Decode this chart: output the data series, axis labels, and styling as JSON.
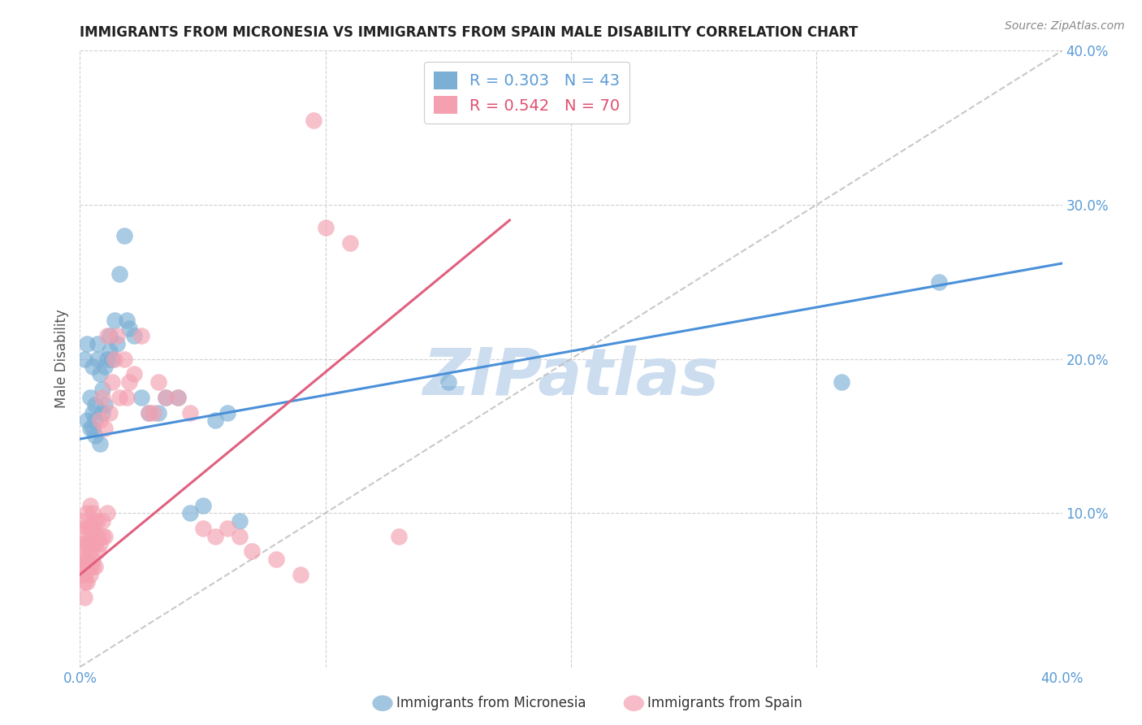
{
  "title": "IMMIGRANTS FROM MICRONESIA VS IMMIGRANTS FROM SPAIN MALE DISABILITY CORRELATION CHART",
  "source": "Source: ZipAtlas.com",
  "ylabel": "Male Disability",
  "xlim": [
    0.0,
    0.4
  ],
  "ylim": [
    0.0,
    0.4
  ],
  "xticks": [
    0.0,
    0.1,
    0.2,
    0.3,
    0.4
  ],
  "yticks": [
    0.1,
    0.2,
    0.3,
    0.4
  ],
  "xticklabels": [
    "0.0%",
    "",
    "",
    "",
    "40.0%"
  ],
  "yticklabels_right": [
    "10.0%",
    "20.0%",
    "30.0%",
    "40.0%"
  ],
  "background_color": "#ffffff",
  "grid_color": "#d0d0d0",
  "color_micronesia": "#7bafd4",
  "color_spain": "#f4a0b0",
  "trendline_micronesia": "#4a90d9",
  "trendline_spain": "#e06080",
  "watermark_text": "ZIPatlas",
  "watermark_color": "#ccddf0",
  "legend_R_micronesia": "R = 0.303",
  "legend_N_micronesia": "N = 43",
  "legend_R_spain": "R = 0.542",
  "legend_N_spain": "N = 70",
  "mic_line_x": [
    0.0,
    0.4
  ],
  "mic_line_y": [
    0.148,
    0.262
  ],
  "spa_line_x": [
    0.0,
    0.175
  ],
  "spa_line_y": [
    0.06,
    0.29
  ],
  "diag_line_x": [
    0.0,
    0.4
  ],
  "diag_line_y": [
    0.0,
    0.4
  ],
  "micronesia_x": [
    0.002,
    0.003,
    0.003,
    0.004,
    0.004,
    0.005,
    0.005,
    0.005,
    0.006,
    0.006,
    0.006,
    0.007,
    0.007,
    0.008,
    0.008,
    0.009,
    0.009,
    0.01,
    0.01,
    0.011,
    0.012,
    0.012,
    0.013,
    0.014,
    0.015,
    0.016,
    0.018,
    0.019,
    0.02,
    0.022,
    0.025,
    0.028,
    0.032,
    0.035,
    0.04,
    0.045,
    0.05,
    0.055,
    0.06,
    0.065,
    0.15,
    0.31,
    0.35
  ],
  "micronesia_y": [
    0.2,
    0.16,
    0.21,
    0.155,
    0.175,
    0.155,
    0.165,
    0.195,
    0.15,
    0.16,
    0.17,
    0.2,
    0.21,
    0.145,
    0.19,
    0.18,
    0.165,
    0.17,
    0.195,
    0.2,
    0.215,
    0.205,
    0.2,
    0.225,
    0.21,
    0.255,
    0.28,
    0.225,
    0.22,
    0.215,
    0.175,
    0.165,
    0.165,
    0.175,
    0.175,
    0.1,
    0.105,
    0.16,
    0.165,
    0.095,
    0.185,
    0.185,
    0.25
  ],
  "spain_x": [
    0.001,
    0.001,
    0.001,
    0.001,
    0.001,
    0.002,
    0.002,
    0.002,
    0.002,
    0.002,
    0.002,
    0.003,
    0.003,
    0.003,
    0.003,
    0.003,
    0.003,
    0.004,
    0.004,
    0.004,
    0.004,
    0.004,
    0.004,
    0.005,
    0.005,
    0.005,
    0.005,
    0.005,
    0.006,
    0.006,
    0.006,
    0.007,
    0.007,
    0.007,
    0.008,
    0.008,
    0.009,
    0.009,
    0.009,
    0.01,
    0.01,
    0.011,
    0.011,
    0.012,
    0.013,
    0.014,
    0.015,
    0.016,
    0.018,
    0.019,
    0.02,
    0.022,
    0.025,
    0.028,
    0.03,
    0.032,
    0.035,
    0.04,
    0.045,
    0.05,
    0.055,
    0.06,
    0.065,
    0.07,
    0.08,
    0.09,
    0.095,
    0.1,
    0.11,
    0.13
  ],
  "spain_y": [
    0.06,
    0.065,
    0.07,
    0.08,
    0.09,
    0.045,
    0.055,
    0.06,
    0.07,
    0.08,
    0.095,
    0.055,
    0.065,
    0.07,
    0.08,
    0.09,
    0.1,
    0.06,
    0.065,
    0.075,
    0.08,
    0.09,
    0.105,
    0.065,
    0.07,
    0.08,
    0.09,
    0.1,
    0.065,
    0.08,
    0.095,
    0.075,
    0.085,
    0.095,
    0.08,
    0.16,
    0.085,
    0.095,
    0.175,
    0.085,
    0.155,
    0.1,
    0.215,
    0.165,
    0.185,
    0.2,
    0.215,
    0.175,
    0.2,
    0.175,
    0.185,
    0.19,
    0.215,
    0.165,
    0.165,
    0.185,
    0.175,
    0.175,
    0.165,
    0.09,
    0.085,
    0.09,
    0.085,
    0.075,
    0.07,
    0.06,
    0.355,
    0.285,
    0.275,
    0.085
  ]
}
